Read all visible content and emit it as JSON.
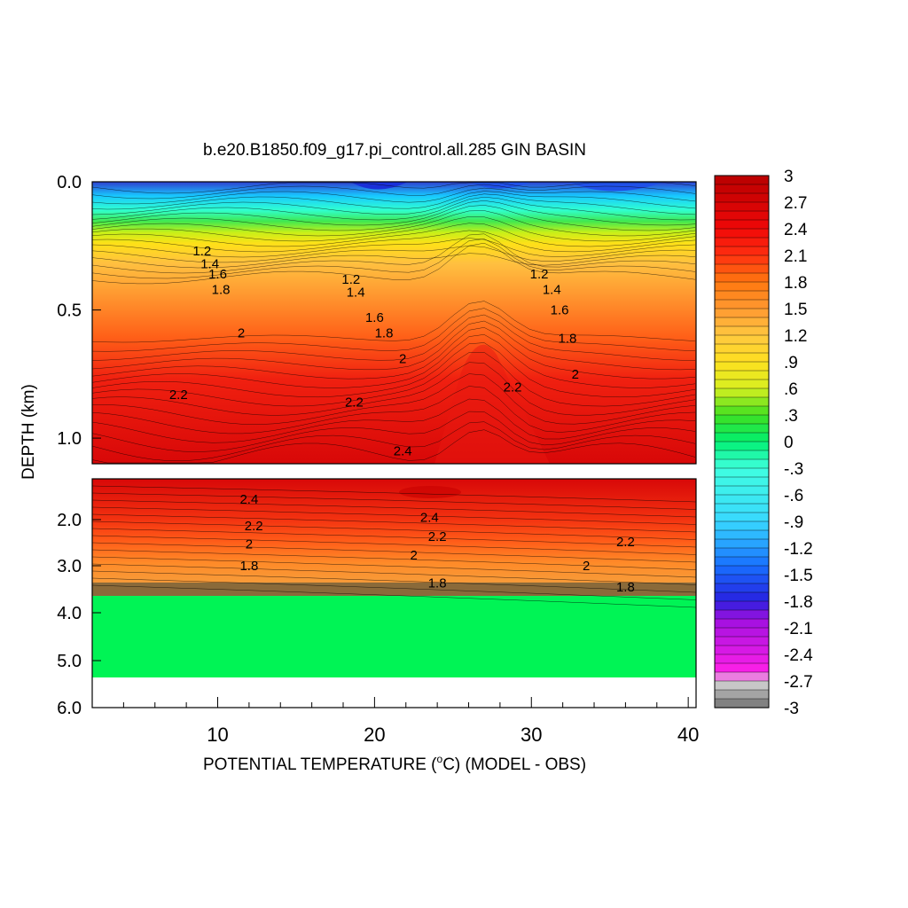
{
  "chart_data": {
    "type": "heatmap",
    "title": "b.e20.B1850.f09_g17.pi_control.all.285 GIN BASIN",
    "xlabel_main": "POTENTIAL TEMPERATURE (",
    "xlabel_sup": "o",
    "xlabel_rest": "C) (MODEL - OBS)",
    "ylabel": "DEPTH (km)",
    "x_ticks": [
      "10",
      "20",
      "30",
      "40"
    ],
    "x_tick_values": [
      10,
      20,
      30,
      40
    ],
    "xlim": [
      2,
      40.5
    ],
    "upper_panel": {
      "ylim": [
        0.0,
        1.1
      ],
      "y_ticks": [
        "0.0",
        "0.5",
        "1.0"
      ],
      "y_tick_values": [
        0.0,
        0.5,
        1.0
      ]
    },
    "lower_panel": {
      "ylim": [
        1.1,
        6.0
      ],
      "y_ticks": [
        "2.0",
        "3.0",
        "4.0",
        "5.0",
        "6.0"
      ],
      "y_tick_values": [
        2.0,
        3.0,
        4.0,
        5.0,
        6.0
      ],
      "bottom_of_data_km": 5.35,
      "uniform_region_value": 0.0
    },
    "colorbar": {
      "labels": [
        "3",
        "2.7",
        "2.4",
        "2.1",
        "1.8",
        "1.5",
        "1.2",
        ".9",
        ".6",
        ".3",
        "0",
        "-.3",
        "-.6",
        "-.9",
        "-1.2",
        "-1.5",
        "-1.8",
        "-2.1",
        "-2.4",
        "-2.7",
        "-3"
      ],
      "min": -3,
      "max": 3,
      "step": 0.1
    },
    "contour_labels": [
      {
        "text": "1.2",
        "value": 1.2,
        "panel": "upper",
        "x": 9.0,
        "y": 0.27
      },
      {
        "text": "1.4",
        "value": 1.4,
        "panel": "upper",
        "x": 9.5,
        "y": 0.32
      },
      {
        "text": "1.6",
        "value": 1.6,
        "panel": "upper",
        "x": 10.0,
        "y": 0.36
      },
      {
        "text": "1.8",
        "value": 1.8,
        "panel": "upper",
        "x": 10.2,
        "y": 0.42
      },
      {
        "text": "2",
        "value": 2.0,
        "panel": "upper",
        "x": 11.5,
        "y": 0.59
      },
      {
        "text": "2.2",
        "value": 2.2,
        "panel": "upper",
        "x": 7.5,
        "y": 0.83
      },
      {
        "text": "1.2",
        "value": 1.2,
        "panel": "upper",
        "x": 18.5,
        "y": 0.38
      },
      {
        "text": "1.4",
        "value": 1.4,
        "panel": "upper",
        "x": 18.8,
        "y": 0.43
      },
      {
        "text": "1.6",
        "value": 1.6,
        "panel": "upper",
        "x": 20.0,
        "y": 0.53
      },
      {
        "text": "1.8",
        "value": 1.8,
        "panel": "upper",
        "x": 20.6,
        "y": 0.59
      },
      {
        "text": "2",
        "value": 2.0,
        "panel": "upper",
        "x": 21.8,
        "y": 0.69
      },
      {
        "text": "2.2",
        "value": 2.2,
        "panel": "upper",
        "x": 18.7,
        "y": 0.86
      },
      {
        "text": "2.4",
        "value": 2.4,
        "panel": "upper",
        "x": 21.8,
        "y": 1.05
      },
      {
        "text": "1.2",
        "value": 1.2,
        "panel": "upper",
        "x": 30.5,
        "y": 0.36
      },
      {
        "text": "1.4",
        "value": 1.4,
        "panel": "upper",
        "x": 31.3,
        "y": 0.42
      },
      {
        "text": "1.6",
        "value": 1.6,
        "panel": "upper",
        "x": 31.8,
        "y": 0.5
      },
      {
        "text": "1.8",
        "value": 1.8,
        "panel": "upper",
        "x": 32.3,
        "y": 0.61
      },
      {
        "text": "2",
        "value": 2.0,
        "panel": "upper",
        "x": 32.8,
        "y": 0.75
      },
      {
        "text": "2.2",
        "value": 2.2,
        "panel": "upper",
        "x": 28.8,
        "y": 0.8
      },
      {
        "text": "2.4",
        "value": 2.4,
        "panel": "lower",
        "x": 12.0,
        "y": 1.55
      },
      {
        "text": "2.2",
        "value": 2.2,
        "panel": "lower",
        "x": 12.3,
        "y": 2.13
      },
      {
        "text": "2",
        "value": 2.0,
        "panel": "lower",
        "x": 12.0,
        "y": 2.53
      },
      {
        "text": "1.8",
        "value": 1.8,
        "panel": "lower",
        "x": 12.0,
        "y": 3.0
      },
      {
        "text": "2.4",
        "value": 2.4,
        "panel": "lower",
        "x": 23.5,
        "y": 1.95
      },
      {
        "text": "2.2",
        "value": 2.2,
        "panel": "lower",
        "x": 24.0,
        "y": 2.37
      },
      {
        "text": "2",
        "value": 2.0,
        "panel": "lower",
        "x": 22.5,
        "y": 2.77
      },
      {
        "text": "1.8",
        "value": 1.8,
        "panel": "lower",
        "x": 24.0,
        "y": 3.37
      },
      {
        "text": "2.2",
        "value": 2.2,
        "panel": "lower",
        "x": 36.0,
        "y": 2.48
      },
      {
        "text": "2",
        "value": 2.0,
        "panel": "lower",
        "x": 33.5,
        "y": 3.0
      },
      {
        "text": "1.8",
        "value": 1.8,
        "panel": "lower",
        "x": 36.0,
        "y": 3.45
      }
    ]
  }
}
